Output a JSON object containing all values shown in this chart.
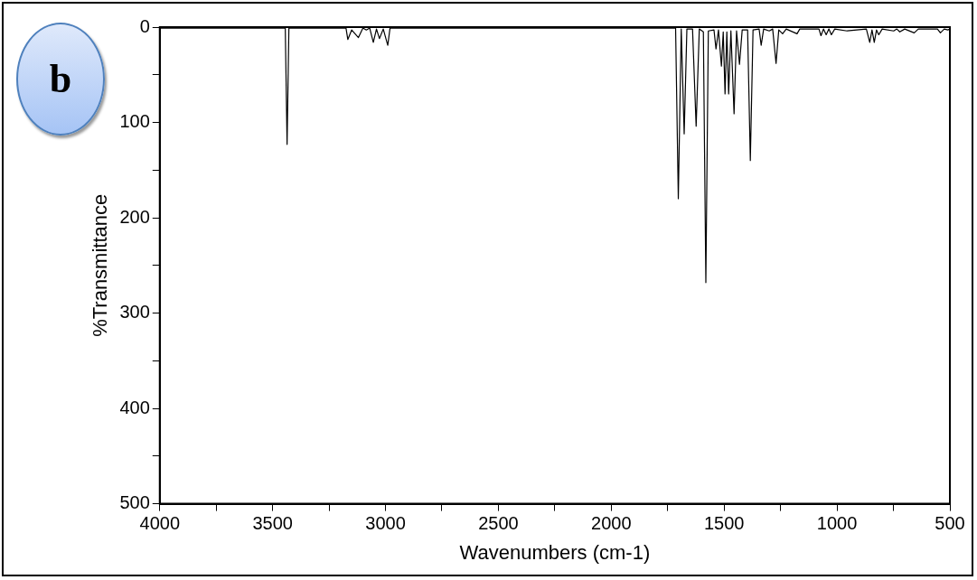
{
  "chart_data": {
    "type": "line",
    "xlabel": "Wavenumbers (cm-1)",
    "ylabel": "%Transmittance",
    "annotations": [
      "b"
    ],
    "xlim": [
      4000,
      500
    ],
    "ylim": [
      500,
      0
    ],
    "xticks": [
      4000,
      {
        "value": 3750,
        "label": null
      },
      3500,
      {
        "value": 3250,
        "label": null
      },
      3000,
      {
        "value": 2750,
        "label": null
      },
      2500,
      {
        "value": 2250,
        "label": null
      },
      2000,
      {
        "value": 1750,
        "label": null
      },
      1500,
      {
        "value": 1250,
        "label": null
      },
      1000,
      {
        "value": 750,
        "label": null
      },
      500
    ],
    "yticks": [
      0,
      {
        "value": 50,
        "label": null
      },
      100,
      {
        "value": 150,
        "label": null
      },
      200,
      {
        "value": 250,
        "label": null
      },
      300,
      {
        "value": 350,
        "label": null
      },
      400,
      {
        "value": 450,
        "label": null
      },
      500
    ],
    "grid": false,
    "legend": false,
    "marker": "none",
    "line_style": "solid",
    "x": [
      4000,
      3444,
      3436,
      3428,
      3175,
      3167,
      3150,
      3120,
      3100,
      3085,
      3070,
      3054,
      3040,
      3027,
      3010,
      2990,
      2980,
      1715,
      1703,
      1690,
      1677,
      1665,
      1640,
      1624,
      1610,
      1592,
      1581,
      1570,
      1545,
      1536,
      1525,
      1512,
      1504,
      1496,
      1488,
      1480,
      1470,
      1456,
      1445,
      1432,
      1420,
      1396,
      1384,
      1372,
      1345,
      1336,
      1325,
      1300,
      1285,
      1270,
      1258,
      1241,
      1225,
      1177,
      1165,
      1080,
      1071,
      1060,
      1048,
      1036,
      1025,
      1010,
      955,
      870,
      855,
      845,
      835,
      825,
      815,
      800,
      749,
      735,
      722,
      700,
      658,
      640,
      555,
      542,
      525,
      509,
      500
    ],
    "series": [
      {
        "color": "#000000",
        "values": [
          1,
          1,
          123,
          1,
          1,
          13,
          3,
          11,
          1,
          3,
          1,
          16,
          2,
          12,
          2,
          19,
          1,
          1,
          180,
          2,
          112,
          2,
          2,
          104,
          2,
          5,
          268,
          4,
          3,
          23,
          3,
          41,
          5,
          70,
          5,
          70,
          4,
          91,
          4,
          39,
          3,
          3,
          140,
          3,
          2,
          19,
          2,
          4,
          2,
          38,
          3,
          7,
          2,
          7,
          2,
          2,
          9,
          2,
          8,
          2,
          8,
          2,
          4,
          2,
          16,
          3,
          16,
          3,
          8,
          2,
          4,
          2,
          5,
          2,
          6,
          2,
          2,
          6,
          2,
          3,
          2
        ]
      }
    ]
  }
}
